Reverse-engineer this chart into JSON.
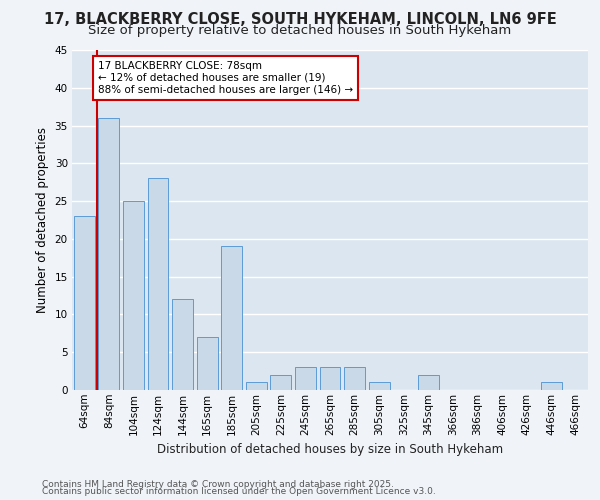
{
  "title_line1": "17, BLACKBERRY CLOSE, SOUTH HYKEHAM, LINCOLN, LN6 9FE",
  "title_line2": "Size of property relative to detached houses in South Hykeham",
  "xlabel": "Distribution of detached houses by size in South Hykeham",
  "ylabel": "Number of detached properties",
  "categories": [
    "64sqm",
    "84sqm",
    "104sqm",
    "124sqm",
    "144sqm",
    "165sqm",
    "185sqm",
    "205sqm",
    "225sqm",
    "245sqm",
    "265sqm",
    "285sqm",
    "305sqm",
    "325sqm",
    "345sqm",
    "366sqm",
    "386sqm",
    "406sqm",
    "426sqm",
    "446sqm",
    "466sqm"
  ],
  "values": [
    23,
    36,
    25,
    28,
    12,
    7,
    19,
    1,
    2,
    3,
    3,
    3,
    1,
    0,
    2,
    0,
    0,
    0,
    0,
    1,
    0
  ],
  "bar_color": "#c9d9e8",
  "bar_edge_color": "#5b9bd5",
  "highlight_line_color": "#cc0000",
  "annotation_text": "17 BLACKBERRY CLOSE: 78sqm\n← 12% of detached houses are smaller (19)\n88% of semi-detached houses are larger (146) →",
  "annotation_box_color": "#ffffff",
  "annotation_box_edge_color": "#cc0000",
  "ylim": [
    0,
    45
  ],
  "yticks": [
    0,
    5,
    10,
    15,
    20,
    25,
    30,
    35,
    40,
    45
  ],
  "plot_bg_color": "#dce6f0",
  "fig_bg_color": "#f0f4f8",
  "grid_color": "#ffffff",
  "footer_line1": "Contains HM Land Registry data © Crown copyright and database right 2025.",
  "footer_line2": "Contains public sector information licensed under the Open Government Licence v3.0.",
  "title_fontsize": 10.5,
  "subtitle_fontsize": 9.5,
  "axis_label_fontsize": 8.5,
  "tick_fontsize": 7.5,
  "annotation_fontsize": 7.5,
  "footer_fontsize": 6.5
}
